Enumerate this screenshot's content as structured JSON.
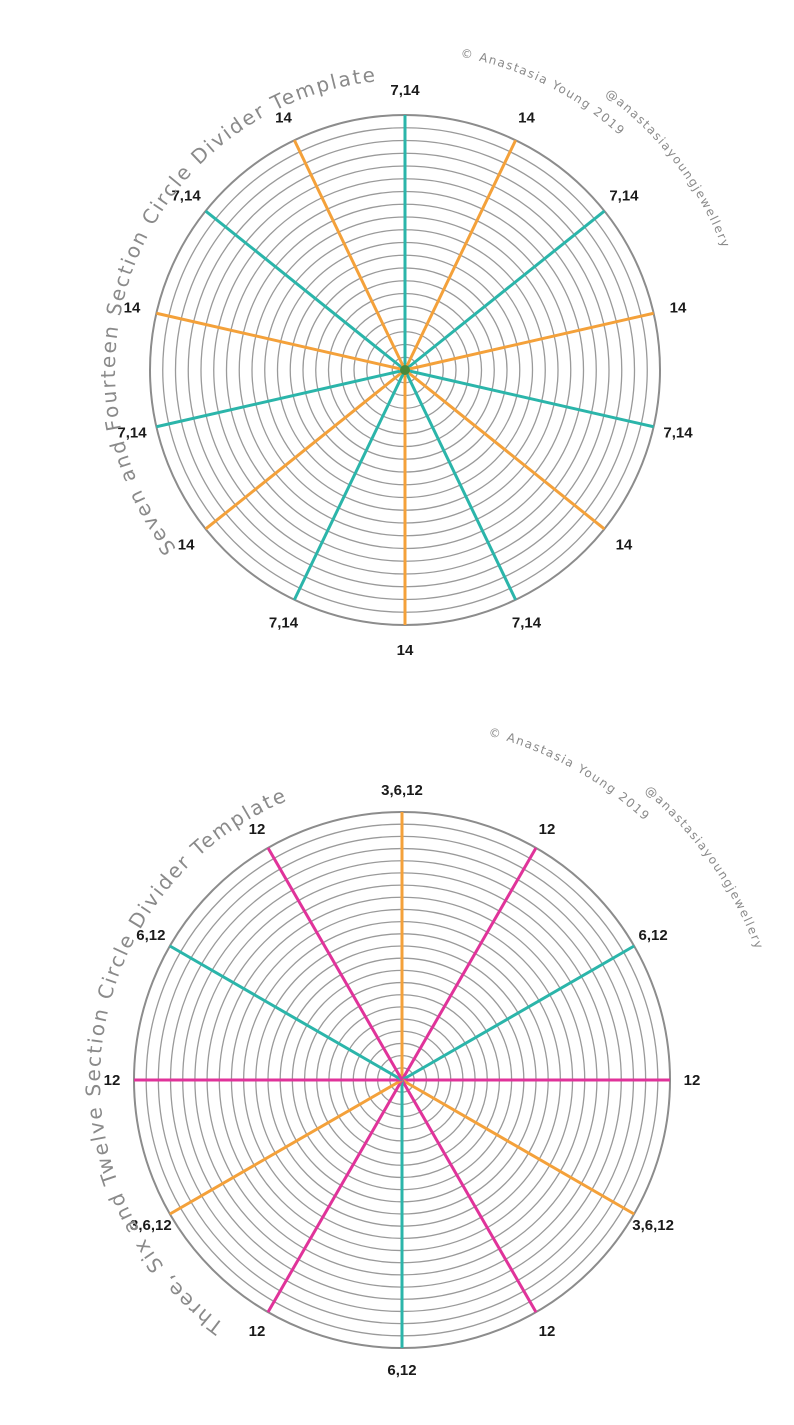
{
  "colors": {
    "teal": "#2bb5aa",
    "orange": "#f4a13a",
    "magenta": "#e0339a",
    "ring": "#9a9a9a",
    "center": "#4a8a3a"
  },
  "templates": [
    {
      "title": "Seven and Fourteen Section Circle Divider Template",
      "credit_line1": "© Anastasia Young 2019",
      "credit_line2": "@anastasiayoungjewellery",
      "center_dot": true,
      "spokes": [
        {
          "angle": 0,
          "label": "7,14",
          "color": "teal"
        },
        {
          "angle": 25.71,
          "label": "14",
          "color": "orange"
        },
        {
          "angle": 51.43,
          "label": "7,14",
          "color": "teal"
        },
        {
          "angle": 77.14,
          "label": "14",
          "color": "orange"
        },
        {
          "angle": 102.86,
          "label": "7,14",
          "color": "teal"
        },
        {
          "angle": 128.57,
          "label": "14",
          "color": "orange"
        },
        {
          "angle": 154.29,
          "label": "7,14",
          "color": "teal"
        },
        {
          "angle": 180,
          "label": "14",
          "color": "orange"
        },
        {
          "angle": 205.71,
          "label": "7,14",
          "color": "teal"
        },
        {
          "angle": 231.43,
          "label": "14",
          "color": "orange"
        },
        {
          "angle": 257.14,
          "label": "7,14",
          "color": "teal"
        },
        {
          "angle": 282.86,
          "label": "14",
          "color": "orange"
        },
        {
          "angle": 308.57,
          "label": "7,14",
          "color": "teal"
        },
        {
          "angle": 334.29,
          "label": "14",
          "color": "orange"
        }
      ]
    },
    {
      "title": "Three, Six and Twelve Section Circle Divider Template",
      "credit_line1": "© Anastasia Young 2019",
      "credit_line2": "@anastasiayoungjewellery",
      "center_dot": false,
      "spokes": [
        {
          "angle": 0,
          "label": "3,6,12",
          "color": "orange"
        },
        {
          "angle": 30,
          "label": "12",
          "color": "magenta"
        },
        {
          "angle": 60,
          "label": "6,12",
          "color": "teal"
        },
        {
          "angle": 90,
          "label": "12",
          "color": "magenta"
        },
        {
          "angle": 120,
          "label": "3,6,12",
          "color": "orange"
        },
        {
          "angle": 150,
          "label": "12",
          "color": "magenta"
        },
        {
          "angle": 180,
          "label": "6,12",
          "color": "teal"
        },
        {
          "angle": 210,
          "label": "12",
          "color": "magenta"
        },
        {
          "angle": 240,
          "label": "3,6,12",
          "color": "orange"
        },
        {
          "angle": 270,
          "label": "12",
          "color": "magenta"
        },
        {
          "angle": 300,
          "label": "6,12",
          "color": "teal"
        },
        {
          "angle": 330,
          "label": "12",
          "color": "magenta"
        }
      ]
    }
  ]
}
